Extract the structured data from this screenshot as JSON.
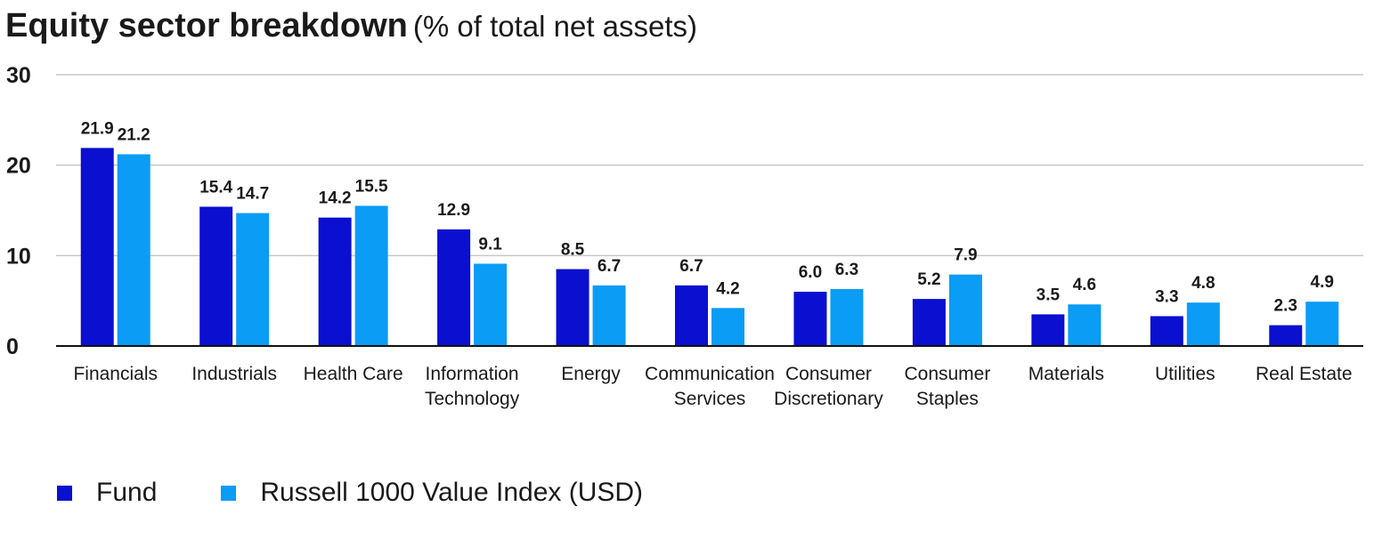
{
  "title": "Equity sector breakdown",
  "subtitle": "(% of total net assets)",
  "colors": {
    "fund": "#0a0fd0",
    "index": "#0b9cf5",
    "grid": "#c8c8c8",
    "text": "#1a1a1a"
  },
  "legend": [
    {
      "name": "Fund",
      "color": "#0a0fd0"
    },
    {
      "name": "Russell 1000 Value Index (USD)",
      "color": "#0b9cf5"
    }
  ],
  "chart_data": {
    "type": "bar",
    "title": "Equity sector breakdown",
    "subtitle": "(% of total net assets)",
    "categories": [
      [
        "Financials"
      ],
      [
        "Industrials"
      ],
      [
        "Health Care"
      ],
      [
        "Information",
        "Technology"
      ],
      [
        "Energy"
      ],
      [
        "Communication",
        "Services"
      ],
      [
        "Consumer",
        "Discretionary"
      ],
      [
        "Consumer",
        "Staples"
      ],
      [
        "Materials"
      ],
      [
        "Utilities"
      ],
      [
        "Real Estate"
      ]
    ],
    "series": [
      {
        "name": "Fund",
        "color": "#0a0fd0",
        "values": [
          21.9,
          15.4,
          14.2,
          12.9,
          8.5,
          6.7,
          6.0,
          5.2,
          3.5,
          3.3,
          2.3
        ],
        "labels": [
          "21.9",
          "15.4",
          "14.2",
          "12.9",
          "8.5",
          "6.7",
          "6.0",
          "5.2",
          "3.5",
          "3.3",
          "2.3"
        ]
      },
      {
        "name": "Russell 1000 Value Index (USD)",
        "color": "#0b9cf5",
        "values": [
          21.2,
          14.7,
          15.5,
          9.1,
          6.7,
          4.2,
          6.3,
          7.9,
          4.6,
          4.8,
          4.9
        ],
        "labels": [
          "21.2",
          "14.7",
          "15.5",
          "9.1",
          "6.7",
          "4.2",
          "6.3",
          "7.9",
          "4.6",
          "4.8",
          "4.9"
        ]
      }
    ],
    "ylim": [
      0,
      30
    ],
    "yticks": [
      "0",
      "10",
      "20",
      "30"
    ],
    "ytick_values": [
      0,
      10,
      20,
      30
    ],
    "grid": true,
    "legend_position": "bottom-left"
  }
}
